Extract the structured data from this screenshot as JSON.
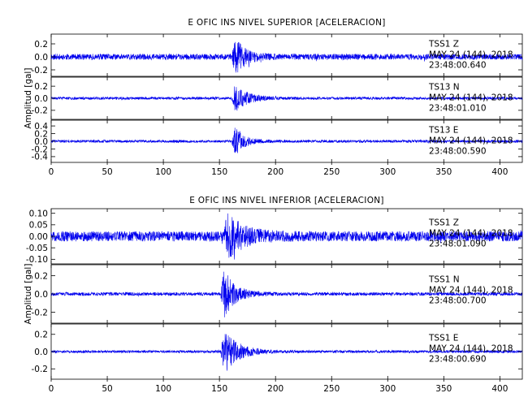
{
  "chart_data": [
    {
      "type": "line",
      "title": "E OFIC INS NIVEL SUPERIOR [ACELERACION]",
      "ylabel": "Amplitud [gal]",
      "xlim": [
        0,
        420
      ],
      "xticks": [
        0,
        50,
        100,
        150,
        200,
        250,
        300,
        350,
        400
      ],
      "panels": [
        {
          "station": "TSS1   Z",
          "date": "MAY 24 (144), 2018",
          "time": "23:48:00.640",
          "ylim": [
            -0.3,
            0.35
          ],
          "yticks": [
            0.2,
            0.0,
            -0.2
          ],
          "ytick_labels": [
            "0.2",
            "0.0",
            "-0.2"
          ],
          "noise_amp": 0.045,
          "peak_amp": 0.27,
          "event_x": 163,
          "decay": 9,
          "seed": 11
        },
        {
          "station": "TS13   N",
          "date": "MAY 24 (144), 2018",
          "time": "23:48:01.010",
          "ylim": [
            -0.35,
            0.35
          ],
          "yticks": [
            0.2,
            0.0,
            -0.2
          ],
          "ytick_labels": [
            "0.2",
            "0.0",
            "-0.2"
          ],
          "noise_amp": 0.022,
          "peak_amp": 0.22,
          "event_x": 163,
          "decay": 11,
          "seed": 23
        },
        {
          "station": "TS13   E",
          "date": "MAY 24 (144), 2018",
          "time": "23:48:00.590",
          "ylim": [
            -0.55,
            0.55
          ],
          "yticks": [
            0.4,
            0.2,
            0.0,
            -0.2,
            -0.4
          ],
          "ytick_labels": [
            "0.4",
            "0.2",
            "0.0",
            "-0.2",
            "-0.4"
          ],
          "noise_amp": 0.035,
          "peak_amp": 0.38,
          "event_x": 163,
          "decay": 8,
          "seed": 37
        }
      ]
    },
    {
      "type": "line",
      "title": "E OFIC INS NIVEL INFERIOR [ACELERACION]",
      "ylabel": "Amplitud [gal]",
      "xlim": [
        0,
        420
      ],
      "xticks": [
        0,
        50,
        100,
        150,
        200,
        250,
        300,
        350,
        400
      ],
      "panels": [
        {
          "station": "TSS1   Z",
          "date": "MAY 24 (144), 2018",
          "time": "23:48:01.090",
          "ylim": [
            -0.12,
            0.12
          ],
          "yticks": [
            0.1,
            0.05,
            0.0,
            -0.05,
            -0.1
          ],
          "ytick_labels": [
            "0.10",
            "0.05",
            "0.00",
            "-0.05",
            "-0.10"
          ],
          "noise_amp": 0.022,
          "peak_amp": 0.09,
          "event_x": 156,
          "decay": 14,
          "seed": 51
        },
        {
          "station": "TSS1   N",
          "date": "MAY 24 (144), 2018",
          "time": "23:48:00.700",
          "ylim": [
            -0.32,
            0.32
          ],
          "yticks": [
            0.2,
            0.0,
            -0.2
          ],
          "ytick_labels": [
            "0.2",
            "0.0",
            "-0.2"
          ],
          "noise_amp": 0.018,
          "peak_amp": 0.26,
          "event_x": 153,
          "decay": 10,
          "seed": 67
        },
        {
          "station": "TSS1   E",
          "date": "MAY 24 (144), 2018",
          "time": "23:48:00.690",
          "ylim": [
            -0.32,
            0.32
          ],
          "yticks": [
            0.2,
            0.0,
            -0.2
          ],
          "ytick_labels": [
            "0.2",
            "0.0",
            "-0.2"
          ],
          "noise_amp": 0.015,
          "peak_amp": 0.27,
          "event_x": 153,
          "decay": 12,
          "seed": 83
        }
      ]
    }
  ],
  "colors": {
    "trace": "#0000ee",
    "axis": "#000000"
  }
}
